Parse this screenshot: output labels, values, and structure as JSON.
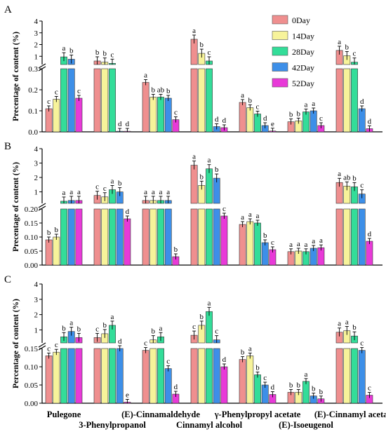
{
  "legend": [
    {
      "label": "0Day",
      "color": "#ef8f8f"
    },
    {
      "label": "14Day",
      "color": "#f7f39a"
    },
    {
      "label": "28Day",
      "color": "#33dd99"
    },
    {
      "label": "42Day",
      "color": "#3d8fe8"
    },
    {
      "label": "52Day",
      "color": "#e83ad8"
    }
  ],
  "x_labels": [
    "Pulegone",
    "3-Phenylpropanol",
    "(E)-Cinnamaldehyde",
    "Cinnamyl alcohol",
    "γ-Phenylpropyl acetate",
    "(E)-Isoeugenol",
    "(E)-Cinnamyl acetate"
  ],
  "chart_data": [
    {
      "type": "bar",
      "panel": "A",
      "ylabel": "Precentage of content (%)",
      "y_break": true,
      "lower_ticks": [
        "0.0",
        "0.1",
        "0.2",
        "0.3"
      ],
      "upper_ticks": [
        "1",
        "2",
        "3",
        "4"
      ],
      "categories": [
        "Pulegone",
        "3-Phenylpropanol",
        "(E)-Cinnamaldehyde",
        "Cinnamyl alcohol",
        "γ-Phenylpropyl acetate",
        "(E)-Isoeugenol",
        "(E)-Cinnamyl acetate"
      ],
      "series": [
        {
          "name": "0Day",
          "values": [
            0.11,
            0.6,
            0.235,
            2.45,
            0.14,
            0.048,
            1.5
          ],
          "letters": [
            "c",
            "b",
            "a",
            "a",
            "a",
            "b",
            "a"
          ]
        },
        {
          "name": "14Day",
          "values": [
            0.155,
            0.5,
            0.165,
            1.25,
            0.115,
            0.052,
            1.05
          ],
          "letters": [
            "c",
            "b",
            "b",
            "b",
            "b",
            "b",
            "b"
          ]
        },
        {
          "name": "28Day",
          "values": [
            0.95,
            0.4,
            0.165,
            0.6,
            0.085,
            0.095,
            0.5
          ],
          "letters": [
            "a",
            "c",
            "ab",
            "c",
            "c",
            "a",
            "c"
          ]
        },
        {
          "name": "42Day",
          "values": [
            0.75,
            0.003,
            0.16,
            0.025,
            0.03,
            0.1,
            0.11
          ],
          "letters": [
            "b",
            "d",
            "b",
            "d",
            "d",
            "a",
            "d"
          ]
        },
        {
          "name": "52Day",
          "values": [
            0.16,
            0.003,
            0.058,
            0.02,
            0.004,
            0.03,
            0.015
          ],
          "letters": [
            "c",
            "d",
            "c",
            "d",
            "e",
            "c",
            "d"
          ]
        }
      ]
    },
    {
      "type": "bar",
      "panel": "B",
      "ylabel": "Precentage of content (%)",
      "y_break": true,
      "lower_ticks": [
        "0.00",
        "0.05",
        "0.10",
        "0.15",
        "0.20"
      ],
      "upper_ticks": [
        "1",
        "2",
        "3",
        "4"
      ],
      "categories": [
        "Pulegone",
        "3-Phenylpropanol",
        "(E)-Cinnamaldehyde",
        "Cinnamyl alcohol",
        "γ-Phenylpropyl acetate",
        "(E)-Isoeugenol",
        "(E)-Cinnamyl acetate"
      ],
      "series": [
        {
          "name": "0Day",
          "values": [
            0.09,
            0.75,
            0.4,
            2.85,
            0.145,
            0.048,
            1.65
          ],
          "letters": [
            "b",
            "c",
            "a",
            "a",
            "a",
            "a",
            "a"
          ]
        },
        {
          "name": "14Day",
          "values": [
            0.1,
            0.65,
            0.4,
            1.45,
            0.155,
            0.05,
            1.4
          ],
          "letters": [
            "b",
            "c",
            "a",
            "b",
            "a",
            "a",
            "ab"
          ]
        },
        {
          "name": "28Day",
          "values": [
            0.35,
            1.15,
            0.4,
            2.6,
            0.15,
            0.048,
            1.35
          ],
          "letters": [
            "a",
            "a",
            "a",
            "a",
            "a",
            "a",
            "b"
          ]
        },
        {
          "name": "42Day",
          "values": [
            0.4,
            1.0,
            0.4,
            1.95,
            0.08,
            0.06,
            0.85
          ],
          "letters": [
            "a",
            "b",
            "a",
            "b",
            "b",
            "a",
            "c"
          ]
        },
        {
          "name": "52Day",
          "values": [
            0.4,
            0.165,
            0.03,
            0.175,
            0.055,
            0.062,
            0.085
          ],
          "letters": [
            "a",
            "d",
            "b",
            "c",
            "c",
            "a",
            "d"
          ]
        }
      ]
    },
    {
      "type": "bar",
      "panel": "C",
      "ylabel": "Percentage of content (%)",
      "y_break": true,
      "lower_ticks": [
        "0.00",
        "0.05",
        "0.10",
        "0.15"
      ],
      "upper_ticks": [
        "1",
        "2",
        "3",
        "4"
      ],
      "categories": [
        "Pulegone",
        "3-Phenylpropanol",
        "(E)-Cinnamaldehyde",
        "Cinnamyl alcohol",
        "γ-Phenylpropyl acetate",
        "(E)-Isoeugenol",
        "(E)-Cinnamyl acetate"
      ],
      "series": [
        {
          "name": "0Day",
          "values": [
            0.13,
            0.5,
            0.145,
            0.65,
            0.12,
            0.03,
            0.85
          ],
          "letters": [
            "c",
            "c",
            "c",
            "c",
            "b",
            "b",
            "a"
          ]
        },
        {
          "name": "14Day",
          "values": [
            0.14,
            0.75,
            0.35,
            1.3,
            0.13,
            0.03,
            0.95
          ],
          "letters": [
            "c",
            "b",
            "b",
            "b",
            "a",
            "b",
            "a"
          ]
        },
        {
          "name": "28Day",
          "values": [
            0.55,
            1.3,
            0.55,
            2.2,
            0.078,
            0.06,
            0.6
          ],
          "letters": [
            "b",
            "a",
            "a",
            "a",
            "b",
            "a",
            "b"
          ]
        },
        {
          "name": "42Day",
          "values": [
            0.9,
            0.15,
            0.095,
            0.35,
            0.05,
            0.02,
            0.145
          ],
          "letters": [
            "a",
            "d",
            "c",
            "c",
            "c",
            "b",
            "c"
          ]
        },
        {
          "name": "52Day",
          "values": [
            0.5,
            0.003,
            0.025,
            0.1,
            0.024,
            0.012,
            0.022
          ],
          "letters": [
            "b",
            "e",
            "d",
            "d",
            "d",
            "b",
            "c"
          ]
        }
      ]
    }
  ]
}
